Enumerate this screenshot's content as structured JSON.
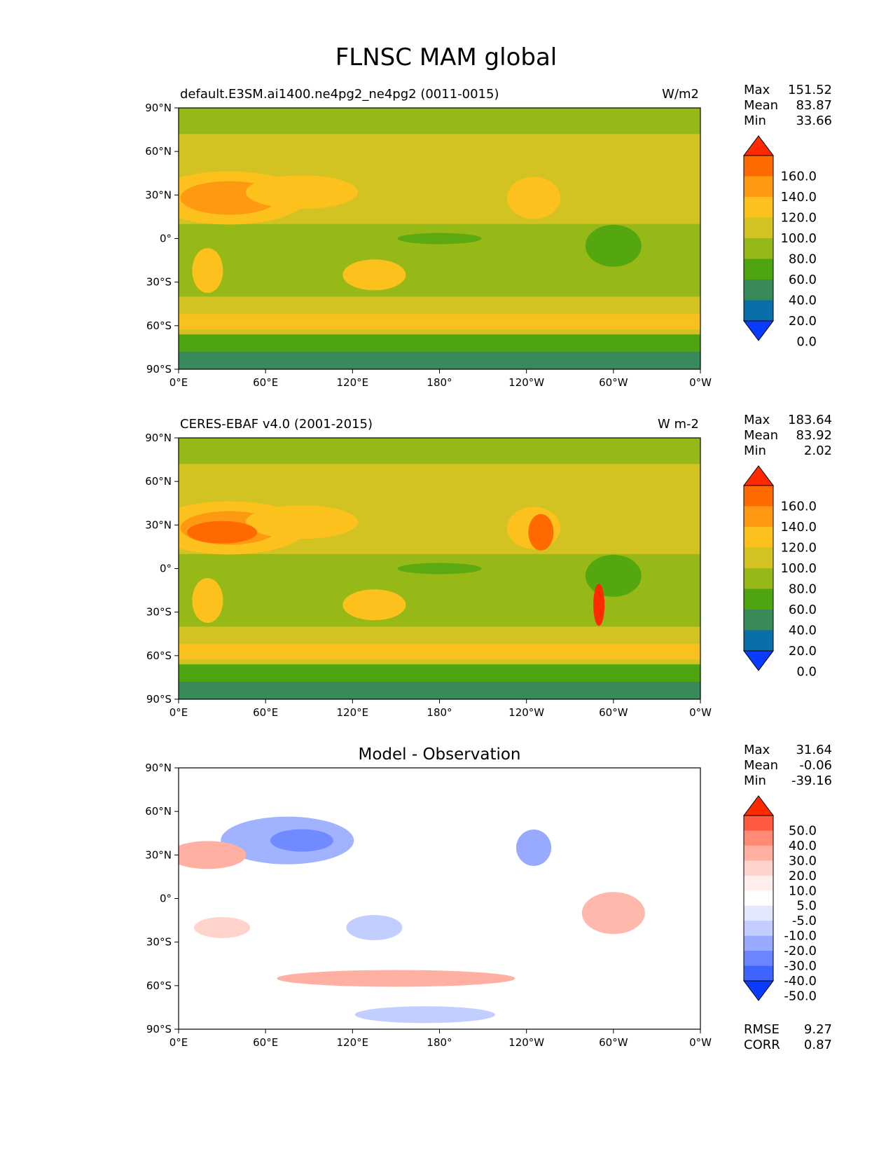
{
  "figure_title": "FLNSC MAM global",
  "chart_data": [
    {
      "type": "heatmap",
      "id": "test",
      "title": "",
      "left_label": "default.E3SM.ai1400.ne4pg2_ne4pg2 (0011-0015)",
      "units": "W/m2",
      "xlim": [
        0,
        360
      ],
      "ylim": [
        -90,
        90
      ],
      "x_ticks": [
        "0°E",
        "60°E",
        "120°E",
        "180°",
        "120°W",
        "60°W",
        "0°W"
      ],
      "y_ticks": [
        "90°N",
        "60°N",
        "30°N",
        "0°",
        "30°S",
        "60°S",
        "90°S"
      ],
      "stats": [
        {
          "label": "Max",
          "value": "151.52"
        },
        {
          "label": "Mean",
          "value": "83.87"
        },
        {
          "label": "Min",
          "value": "33.66"
        }
      ],
      "colorbar_labels": [
        "160.0",
        "140.0",
        "120.0",
        "100.0",
        "80.0",
        "60.0",
        "40.0",
        "20.0",
        "0.0"
      ],
      "colorbar_colors": [
        "#ff2a00",
        "#ff6a00",
        "#fd9a12",
        "#fdc11e",
        "#d2c322",
        "#97b917",
        "#4ea50f",
        "#398a5a",
        "#0a6ea9",
        "#0a3cff"
      ],
      "colorbar_extend": "both"
    },
    {
      "type": "heatmap",
      "id": "reference",
      "title": "",
      "left_label": "CERES-EBAF v4.0 (2001-2015)",
      "units": "W m-2",
      "xlim": [
        0,
        360
      ],
      "ylim": [
        -90,
        90
      ],
      "x_ticks": [
        "0°E",
        "60°E",
        "120°E",
        "180°",
        "120°W",
        "60°W",
        "0°W"
      ],
      "y_ticks": [
        "90°N",
        "60°N",
        "30°N",
        "0°",
        "30°S",
        "60°S",
        "90°S"
      ],
      "stats": [
        {
          "label": "Max",
          "value": "183.64"
        },
        {
          "label": "Mean",
          "value": "83.92"
        },
        {
          "label": "Min",
          "value": "2.02"
        }
      ],
      "colorbar_labels": [
        "160.0",
        "140.0",
        "120.0",
        "100.0",
        "80.0",
        "60.0",
        "40.0",
        "20.0",
        "0.0"
      ],
      "colorbar_colors": [
        "#ff2a00",
        "#ff6a00",
        "#fd9a12",
        "#fdc11e",
        "#d2c322",
        "#97b917",
        "#4ea50f",
        "#398a5a",
        "#0a6ea9",
        "#0a3cff"
      ],
      "colorbar_extend": "both"
    },
    {
      "type": "heatmap",
      "id": "difference",
      "title": "Model - Observation",
      "left_label": "",
      "units": "",
      "xlim": [
        0,
        360
      ],
      "ylim": [
        -90,
        90
      ],
      "x_ticks": [
        "0°E",
        "60°E",
        "120°E",
        "180°",
        "120°W",
        "60°W",
        "0°W"
      ],
      "y_ticks": [
        "90°N",
        "60°N",
        "30°N",
        "0°",
        "30°S",
        "60°S",
        "90°S"
      ],
      "stats": [
        {
          "label": "Max",
          "value": "31.64"
        },
        {
          "label": "Mean",
          "value": "-0.06"
        },
        {
          "label": "Min",
          "value": "-39.16"
        }
      ],
      "colorbar_labels": [
        "50.0",
        "40.0",
        "30.0",
        "20.0",
        "10.0",
        "5.0",
        "-5.0",
        "-10.0",
        "-20.0",
        "-30.0",
        "-40.0",
        "-50.0"
      ],
      "colorbar_colors": [
        "#ff2a00",
        "#ff5a40",
        "#ff8a75",
        "#ffb0a3",
        "#ffd2cb",
        "#ffeeeb",
        "#ffffff",
        "#e2e8ff",
        "#c2ceff",
        "#97aaff",
        "#6a85ff",
        "#3f63ff",
        "#0a3cff"
      ],
      "colorbar_extend": "both",
      "metrics": [
        {
          "label": "RMSE",
          "value": "9.27"
        },
        {
          "label": "CORR",
          "value": "0.87"
        }
      ]
    }
  ]
}
